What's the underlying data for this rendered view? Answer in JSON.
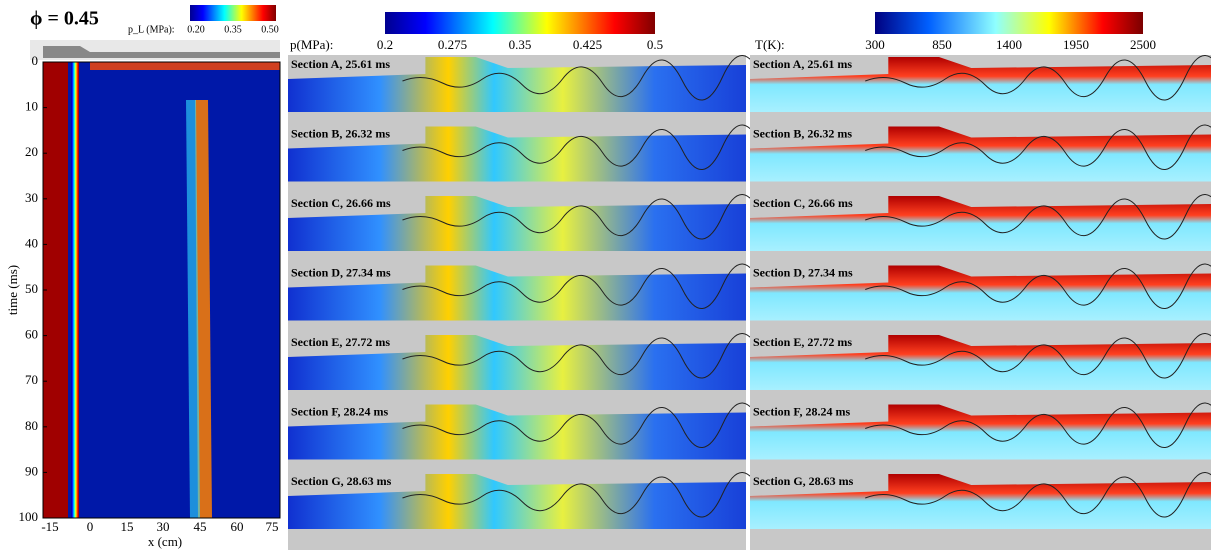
{
  "left_panel": {
    "title": "ϕ = 0.45",
    "colorbar_label": "p_L (MPa):",
    "colorbar_ticks": [
      "0.20",
      "0.35",
      "0.50"
    ],
    "y_label": "time (ms)",
    "x_label": "x (cm)",
    "y_ticks": [
      "0",
      "10",
      "20",
      "30",
      "40",
      "50",
      "60",
      "70",
      "80",
      "90",
      "100"
    ],
    "x_ticks": [
      "-15",
      "0",
      "15",
      "30",
      "45",
      "60",
      "75"
    ]
  },
  "pressure_panel": {
    "colorbar_label": "p(MPa):",
    "colorbar_ticks": [
      "0.2",
      "0.275",
      "0.35",
      "0.425",
      "0.5"
    ]
  },
  "temperature_panel": {
    "colorbar_label": "T(K):",
    "colorbar_ticks": [
      "300",
      "850",
      "1400",
      "1950",
      "2500"
    ]
  },
  "sections": [
    "Section A,  25.61 ms",
    "Section B,  26.32 ms",
    "Section C,  26.66 ms",
    "Section D,  27.34 ms",
    "Section E,  27.72 ms",
    "Section F,  28.24 ms",
    "Section G,  28.63 ms"
  ]
}
